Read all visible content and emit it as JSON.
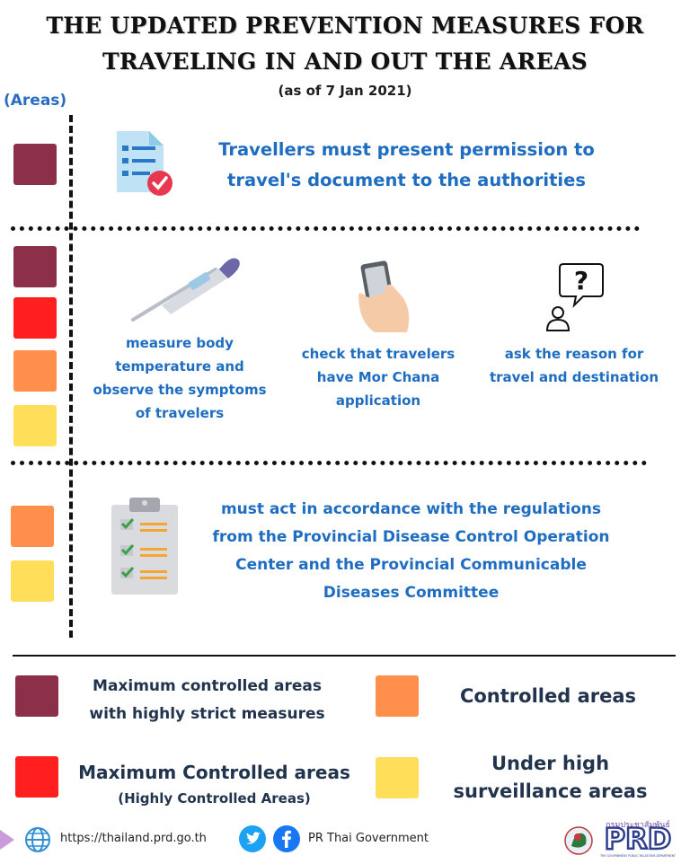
{
  "header": {
    "title_line1": "THE UPDATED PREVENTION MEASURES FOR",
    "title_line2": "TRAVELING IN AND OUT THE AREAS",
    "subtitle": "(as of 7 Jan 2021)"
  },
  "areas_label": "(Areas)",
  "colors": {
    "maximum_strict": "#8b3048",
    "maximum": "#ff1f1f",
    "controlled": "#ff8f4a",
    "high_surveillance": "#ffde59",
    "text_blue": "#1f6dc1",
    "text_navy": "#22344d"
  },
  "section1": {
    "icon": "document-check-icon",
    "text_line1": "Travellers must present permission to",
    "text_line2": "travel's document to the authorities"
  },
  "section2": {
    "items": [
      {
        "icon": "thermometer-icon",
        "lines": [
          "measure body",
          "temperature and",
          "observe the symptoms",
          "of travelers"
        ]
      },
      {
        "icon": "smartphone-hand-icon",
        "lines": [
          "check that travelers",
          "have Mor Chana",
          "application"
        ]
      },
      {
        "icon": "person-question-icon",
        "lines": [
          "ask the reason for",
          "travel and destination"
        ]
      }
    ]
  },
  "section3": {
    "icon": "clipboard-checklist-icon",
    "lines": [
      "must act in accordance with the regulations",
      "from the Provincial Disease Control Operation",
      "Center and the Provincial Communicable",
      "Diseases Committee"
    ]
  },
  "legend": {
    "maximum_strict": [
      "Maximum controlled areas",
      "with highly strict measures"
    ],
    "controlled": "Controlled areas",
    "maximum": [
      "Maximum Controlled areas",
      "(Highly Controlled Areas)"
    ],
    "high_surveillance": [
      "Under high",
      "surveillance areas"
    ]
  },
  "footer": {
    "website": "https://thailand.prd.go.th",
    "social": "PR Thai Government",
    "logo_text": "PRD",
    "logo_thai": "กรมประชาสัมพันธ์",
    "logo_sub": "THE GOVERNMENT PUBLIC RELATIONS DEPARTMENT"
  }
}
